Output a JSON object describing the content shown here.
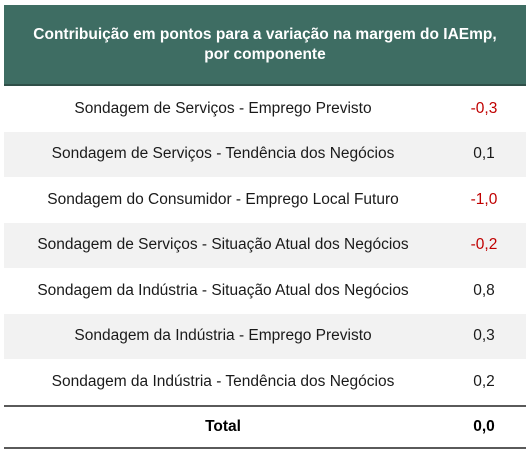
{
  "header": {
    "line1": "Contribuição em pontos para a variação na margem do IAEmp,",
    "line2": "por componente"
  },
  "rows": [
    {
      "label": "Sondagem de Serviços - Emprego Previsto",
      "value": "-0,3"
    },
    {
      "label": "Sondagem de Serviços - Tendência dos Negócios",
      "value": "0,1"
    },
    {
      "label": "Sondagem do Consumidor - Emprego Local Futuro",
      "value": "-1,0"
    },
    {
      "label": "Sondagem de Serviços - Situação Atual dos Negócios",
      "value": "-0,2"
    },
    {
      "label": "Sondagem da Indústria - Situação Atual dos Negócios",
      "value": "0,8"
    },
    {
      "label": "Sondagem da Indústria - Emprego Previsto",
      "value": "0,3"
    },
    {
      "label": "Sondagem da Indústria - Tendência dos Negócios",
      "value": "0,2"
    }
  ],
  "total": {
    "label": "Total",
    "value": "0,0"
  },
  "colors": {
    "header_bg": "#3e6d63",
    "negative": "#c00000",
    "alt_row": "#f2f2f2"
  }
}
